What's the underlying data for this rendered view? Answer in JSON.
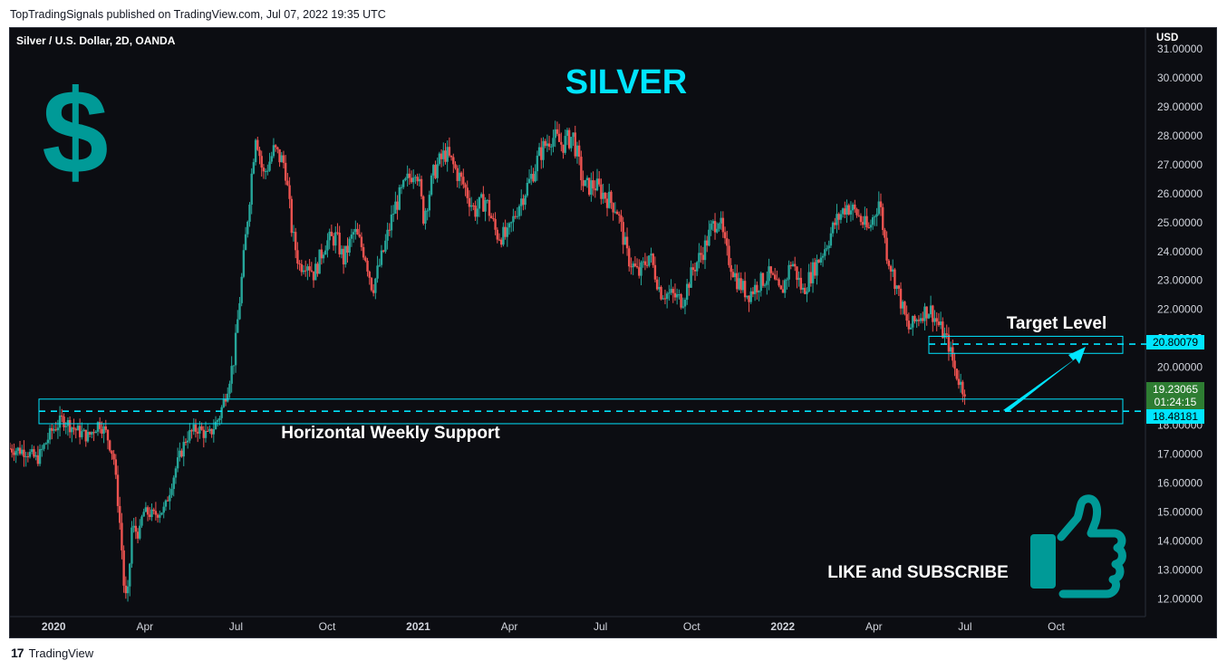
{
  "header": {
    "publisher_line": "TopTradingSignals published on TradingView.com, Jul 07, 2022 19:35 UTC"
  },
  "footer": {
    "brand": "TradingView"
  },
  "chart_title": "SILVER",
  "chart_data": {
    "type": "candlestick",
    "symbol": "Silver / U.S. Dollar, 2D, OANDA",
    "currency": "USD",
    "title": "SILVER",
    "ylim": [
      11.5,
      31.3
    ],
    "y_ticks": [
      12,
      13,
      14,
      15,
      16,
      17,
      18,
      19,
      20,
      21,
      22,
      23,
      24,
      25,
      26,
      27,
      28,
      29,
      30,
      31
    ],
    "x_ticks": [
      {
        "label": "2020",
        "t": 2020.0,
        "bold": true
      },
      {
        "label": "Apr",
        "t": 2020.25,
        "bold": false
      },
      {
        "label": "Jul",
        "t": 2020.5,
        "bold": false
      },
      {
        "label": "Oct",
        "t": 2020.75,
        "bold": false
      },
      {
        "label": "2021",
        "t": 2021.0,
        "bold": true
      },
      {
        "label": "Apr",
        "t": 2021.25,
        "bold": false
      },
      {
        "label": "Jul",
        "t": 2021.5,
        "bold": false
      },
      {
        "label": "Oct",
        "t": 2021.75,
        "bold": false
      },
      {
        "label": "2022",
        "t": 2022.0,
        "bold": true
      },
      {
        "label": "Apr",
        "t": 2022.25,
        "bold": false
      },
      {
        "label": "Jul",
        "t": 2022.5,
        "bold": false
      },
      {
        "label": "Oct",
        "t": 2022.75,
        "bold": false
      }
    ],
    "xlim": [
      2019.88,
      2022.995
    ],
    "price_path": [
      [
        2019.88,
        17.2
      ],
      [
        2019.93,
        17.1
      ],
      [
        2019.96,
        16.8
      ],
      [
        2020.0,
        17.8
      ],
      [
        2020.03,
        18.2
      ],
      [
        2020.07,
        17.8
      ],
      [
        2020.1,
        17.6
      ],
      [
        2020.13,
        18.1
      ],
      [
        2020.15,
        17.7
      ],
      [
        2020.17,
        16.9
      ],
      [
        2020.19,
        14.2
      ],
      [
        2020.2,
        12.0
      ],
      [
        2020.21,
        12.3
      ],
      [
        2020.22,
        14.5
      ],
      [
        2020.24,
        14.2
      ],
      [
        2020.25,
        15.0
      ],
      [
        2020.28,
        14.9
      ],
      [
        2020.31,
        15.1
      ],
      [
        2020.34,
        16.5
      ],
      [
        2020.37,
        17.6
      ],
      [
        2020.4,
        17.9
      ],
      [
        2020.43,
        17.6
      ],
      [
        2020.46,
        18.3
      ],
      [
        2020.48,
        19.2
      ],
      [
        2020.5,
        20.3
      ],
      [
        2020.53,
        24.2
      ],
      [
        2020.56,
        28.2
      ],
      [
        2020.58,
        26.6
      ],
      [
        2020.61,
        27.5
      ],
      [
        2020.64,
        27.0
      ],
      [
        2020.66,
        24.6
      ],
      [
        2020.68,
        23.5
      ],
      [
        2020.7,
        23.7
      ],
      [
        2020.72,
        23.2
      ],
      [
        2020.75,
        24.3
      ],
      [
        2020.78,
        24.5
      ],
      [
        2020.8,
        23.7
      ],
      [
        2020.83,
        24.7
      ],
      [
        2020.86,
        23.9
      ],
      [
        2020.88,
        22.7
      ],
      [
        2020.91,
        24.0
      ],
      [
        2020.94,
        25.5
      ],
      [
        2020.97,
        26.3
      ],
      [
        2021.0,
        27.0
      ],
      [
        2021.02,
        25.2
      ],
      [
        2021.05,
        26.8
      ],
      [
        2021.08,
        27.4
      ],
      [
        2021.1,
        27.0
      ],
      [
        2021.13,
        26.3
      ],
      [
        2021.16,
        25.4
      ],
      [
        2021.19,
        25.8
      ],
      [
        2021.22,
        24.6
      ],
      [
        2021.25,
        24.5
      ],
      [
        2021.28,
        25.6
      ],
      [
        2021.31,
        26.4
      ],
      [
        2021.34,
        27.4
      ],
      [
        2021.37,
        28.0
      ],
      [
        2021.4,
        27.7
      ],
      [
        2021.43,
        28.0
      ],
      [
        2021.46,
        26.2
      ],
      [
        2021.49,
        26.3
      ],
      [
        2021.52,
        25.9
      ],
      [
        2021.55,
        25.5
      ],
      [
        2021.58,
        23.8
      ],
      [
        2021.61,
        23.2
      ],
      [
        2021.64,
        23.9
      ],
      [
        2021.67,
        22.6
      ],
      [
        2021.7,
        22.5
      ],
      [
        2021.73,
        22.3
      ],
      [
        2021.76,
        23.4
      ],
      [
        2021.79,
        24.1
      ],
      [
        2021.81,
        24.8
      ],
      [
        2021.83,
        25.2
      ],
      [
        2021.85,
        24.0
      ],
      [
        2021.88,
        23.0
      ],
      [
        2021.91,
        22.5
      ],
      [
        2021.94,
        22.9
      ],
      [
        2021.97,
        23.2
      ],
      [
        2022.0,
        22.5
      ],
      [
        2022.03,
        23.7
      ],
      [
        2022.06,
        22.6
      ],
      [
        2022.09,
        23.4
      ],
      [
        2022.12,
        24.1
      ],
      [
        2022.15,
        25.0
      ],
      [
        2022.18,
        25.6
      ],
      [
        2022.21,
        25.3
      ],
      [
        2022.24,
        24.7
      ],
      [
        2022.27,
        25.8
      ],
      [
        2022.29,
        24.0
      ],
      [
        2022.32,
        22.7
      ],
      [
        2022.35,
        21.3
      ],
      [
        2022.37,
        21.6
      ],
      [
        2022.39,
        21.9
      ],
      [
        2022.41,
        22.0
      ],
      [
        2022.44,
        21.3
      ],
      [
        2022.46,
        20.8
      ],
      [
        2022.48,
        19.8
      ],
      [
        2022.5,
        19.23
      ]
    ],
    "last_price": "19.23065",
    "countdown": "01:24:15",
    "target_price": "20.80079",
    "support_price": "18.48181",
    "annotations": {
      "target_label": "Target Level",
      "support_label": "Horizontal Weekly Support",
      "cta": "LIKE and SUBSCRIBE",
      "dollar_sign": "$"
    },
    "colors": {
      "up": "#26a69a",
      "down": "#ef5350",
      "accent": "#00e5ff",
      "logo_teal": "#009a97",
      "last_price_bg": "#2e7d32",
      "background": "#0c0d12"
    },
    "grid": false
  }
}
